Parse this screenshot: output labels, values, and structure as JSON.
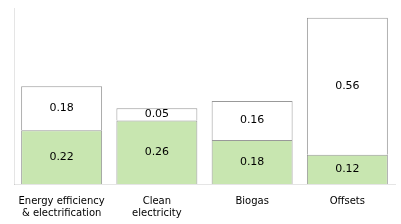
{
  "chart_data": {
    "type": "bar",
    "stacked": true,
    "categories": [
      "Energy efficiency\n& electrification",
      "Clean\nelectricity",
      "Biogas",
      "Offsets"
    ],
    "series": [
      {
        "color": "#c8e6b0",
        "values": [
          0.22,
          0.26,
          0.18,
          0.12
        ]
      },
      {
        "color": "#ffffff",
        "values": [
          0.18,
          0.05,
          0.16,
          0.56
        ]
      }
    ],
    "ylim": [
      0,
      0.72
    ],
    "grid": false,
    "legend": false,
    "data_labels": true,
    "tick_labels": "x"
  }
}
